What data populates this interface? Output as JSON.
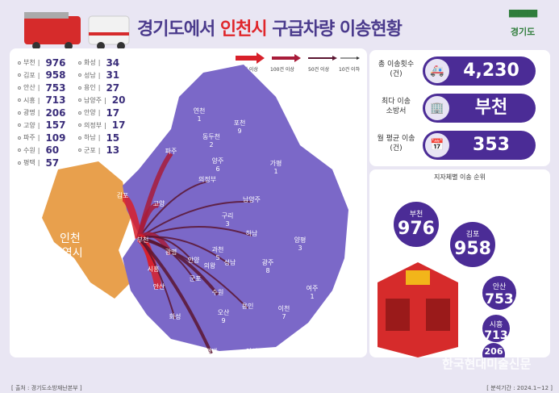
{
  "header": {
    "title_pre": "경기도에서 ",
    "title_highlight": "인천시",
    "title_post": " 구급차량 이송현황",
    "logo": "경기도"
  },
  "list": {
    "col1": [
      {
        "name": "부천",
        "value": "976"
      },
      {
        "name": "김포",
        "value": "958"
      },
      {
        "name": "안산",
        "value": "753"
      },
      {
        "name": "시흥",
        "value": "713"
      },
      {
        "name": "광명",
        "value": "206"
      },
      {
        "name": "고양",
        "value": "157"
      },
      {
        "name": "파주",
        "value": "109"
      },
      {
        "name": "수원",
        "value": "60"
      },
      {
        "name": "평택",
        "value": "57"
      }
    ],
    "col2": [
      {
        "name": "화성",
        "value": "34"
      },
      {
        "name": "성남",
        "value": "31"
      },
      {
        "name": "용인",
        "value": "27"
      },
      {
        "name": "남양주",
        "value": "20"
      },
      {
        "name": "안양",
        "value": "17"
      },
      {
        "name": "의정부",
        "value": "17"
      },
      {
        "name": "하남",
        "value": "15"
      },
      {
        "name": "군포",
        "value": "13"
      }
    ]
  },
  "legend": [
    "500건 이상",
    "100건 이상",
    "50건 이상",
    "10건 이하"
  ],
  "map": {
    "incheon": "인천\n광역시",
    "labels": [
      {
        "name": "연천",
        "v": "1"
      },
      {
        "name": "포천",
        "v": "9"
      },
      {
        "name": "동두천",
        "v": "2"
      },
      {
        "name": "파주",
        "v": ""
      },
      {
        "name": "양주",
        "v": "6"
      },
      {
        "name": "가평",
        "v": "1"
      },
      {
        "name": "의정부",
        "v": ""
      },
      {
        "name": "김포",
        "v": ""
      },
      {
        "name": "고양",
        "v": ""
      },
      {
        "name": "남양주",
        "v": ""
      },
      {
        "name": "구리",
        "v": "3"
      },
      {
        "name": "하남",
        "v": ""
      },
      {
        "name": "양평",
        "v": "3"
      },
      {
        "name": "부천",
        "v": ""
      },
      {
        "name": "광명",
        "v": ""
      },
      {
        "name": "과천",
        "v": "5"
      },
      {
        "name": "안양",
        "v": ""
      },
      {
        "name": "의왕",
        "v": ""
      },
      {
        "name": "성남",
        "v": ""
      },
      {
        "name": "광주",
        "v": "8"
      },
      {
        "name": "시흥",
        "v": ""
      },
      {
        "name": "군포",
        "v": ""
      },
      {
        "name": "안산",
        "v": ""
      },
      {
        "name": "수원",
        "v": ""
      },
      {
        "name": "용인",
        "v": ""
      },
      {
        "name": "여주",
        "v": "1"
      },
      {
        "name": "이천",
        "v": "7"
      },
      {
        "name": "화성",
        "v": ""
      },
      {
        "name": "오산",
        "v": "9"
      },
      {
        "name": "평택",
        "v": ""
      },
      {
        "name": "안성",
        "v": "6"
      }
    ]
  },
  "stats": [
    {
      "label": "총 이송횟수\n(건)",
      "value": "4,230",
      "icon": "ambulance-icon"
    },
    {
      "label": "최다 이송\n소방서",
      "value": "부천",
      "icon": "fire-station-icon"
    },
    {
      "label": "월 평균 이송\n(건)",
      "value": "353",
      "icon": "calendar-icon"
    }
  ],
  "ranking": {
    "title": "지자체별 이송 순위",
    "items": [
      {
        "name": "부천",
        "value": "976"
      },
      {
        "name": "김포",
        "value": "958"
      },
      {
        "name": "안산",
        "value": "753"
      },
      {
        "name": "시흥",
        "value": "713"
      },
      {
        "name": "",
        "value": "206"
      }
    ]
  },
  "footer": {
    "source": "[ 출처 : 경기도소방재난본부 ]",
    "period": "[ 분석기간 : 2024.1~12 ]"
  },
  "watermark": "한국현대미술신문",
  "colors": {
    "primary": "#4b2c96",
    "map": "#7b68c8",
    "incheon": "#e8a04d",
    "accent": "#e0262b"
  }
}
